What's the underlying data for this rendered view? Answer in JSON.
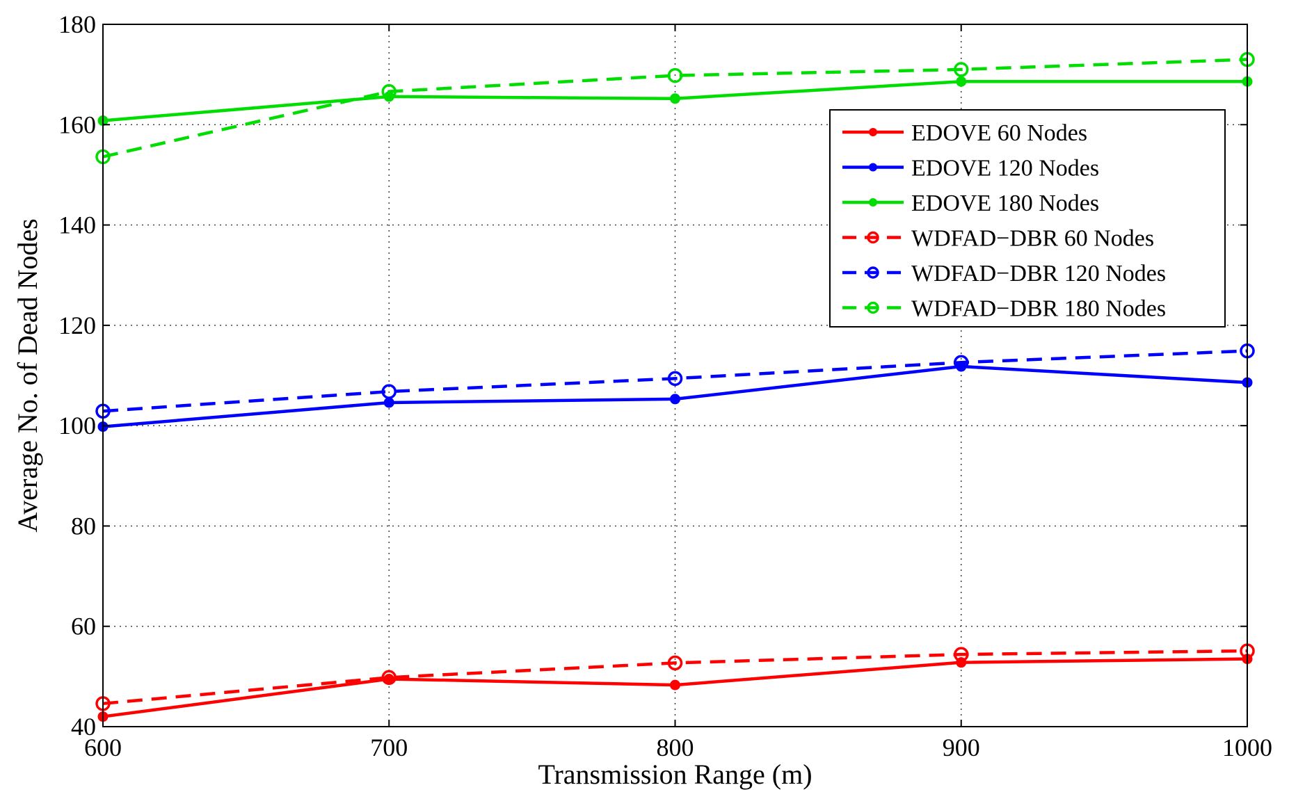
{
  "chart_data": {
    "type": "line",
    "title": "",
    "xlabel": "Transmission Range (m)",
    "ylabel": "Average No. of Dead Nodes",
    "x": [
      600,
      700,
      800,
      900,
      1000
    ],
    "xlim": [
      600,
      1000
    ],
    "ylim": [
      40,
      180
    ],
    "xticks": [
      "600",
      "700",
      "800",
      "900",
      "1000"
    ],
    "yticks": [
      "40",
      "60",
      "80",
      "100",
      "120",
      "140",
      "160",
      "180"
    ],
    "grid": true,
    "legend_position": "top-right",
    "series": [
      {
        "name": "EDOVE 60 Nodes",
        "color": "#ff0000",
        "style": "solid",
        "marker": "dot",
        "values": [
          42,
          49.5,
          48.3,
          52.8,
          53.5
        ]
      },
      {
        "name": "EDOVE 120 Nodes",
        "color": "#0000ff",
        "style": "solid",
        "marker": "dot",
        "values": [
          99.8,
          104.6,
          105.3,
          111.8,
          108.6
        ]
      },
      {
        "name": "EDOVE 180 Nodes",
        "color": "#00dd00",
        "style": "solid",
        "marker": "dot",
        "values": [
          160.8,
          165.6,
          165.2,
          168.6,
          168.6
        ]
      },
      {
        "name": "WDFAD−DBR 60 Nodes",
        "color": "#ff0000",
        "style": "dashed",
        "marker": "circle",
        "values": [
          44.6,
          49.8,
          52.7,
          54.4,
          55.1
        ]
      },
      {
        "name": "WDFAD−DBR 120 Nodes",
        "color": "#0000ff",
        "style": "dashed",
        "marker": "circle",
        "values": [
          102.9,
          106.8,
          109.4,
          112.6,
          114.9
        ]
      },
      {
        "name": "WDFAD−DBR 180 Nodes",
        "color": "#00dd00",
        "style": "dashed",
        "marker": "circle",
        "values": [
          153.6,
          166.6,
          169.8,
          171.0,
          173.0
        ]
      }
    ]
  }
}
